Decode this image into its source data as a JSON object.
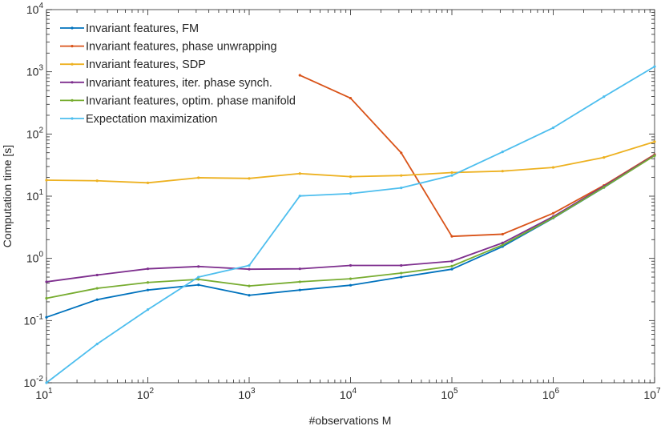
{
  "chart_data": {
    "type": "line",
    "title": "",
    "xlabel": "#observations M",
    "ylabel": "Computation time [s]",
    "xscale": "log",
    "yscale": "log",
    "xlim": [
      10,
      10000000
    ],
    "ylim": [
      0.01,
      10000
    ],
    "grid": false,
    "legend_position": "top-left",
    "x": [
      10,
      31.6,
      100,
      316,
      1000,
      3162,
      10000,
      31623,
      100000,
      316228,
      1000000,
      3162278,
      10000000
    ],
    "x_tick_labels": [
      {
        "base": "10",
        "exp": "1"
      },
      {
        "base": "10",
        "exp": "2"
      },
      {
        "base": "10",
        "exp": "3"
      },
      {
        "base": "10",
        "exp": "4"
      },
      {
        "base": "10",
        "exp": "5"
      },
      {
        "base": "10",
        "exp": "6"
      },
      {
        "base": "10",
        "exp": "7"
      }
    ],
    "y_tick_labels": [
      {
        "base": "10",
        "exp": "-2"
      },
      {
        "base": "10",
        "exp": "-1"
      },
      {
        "base": "10",
        "exp": "0"
      },
      {
        "base": "10",
        "exp": "1"
      },
      {
        "base": "10",
        "exp": "2"
      },
      {
        "base": "10",
        "exp": "3"
      },
      {
        "base": "10",
        "exp": "4"
      }
    ],
    "series": [
      {
        "name": "Invariant features, FM",
        "color": "#0072BD",
        "values": [
          0.113,
          0.217,
          0.31,
          0.375,
          0.255,
          0.31,
          0.37,
          0.5,
          0.67,
          1.55,
          4.45,
          13.8,
          45.4
        ]
      },
      {
        "name": "Invariant features, phase unwrapping",
        "color": "#D95319",
        "values": [
          null,
          null,
          null,
          null,
          null,
          880,
          377,
          49.7,
          2.26,
          2.45,
          5.32,
          14.9,
          46.8
        ]
      },
      {
        "name": "Invariant features, SDP",
        "color": "#EDB120",
        "values": [
          18.1,
          17.7,
          16.4,
          19.8,
          19.3,
          23.1,
          20.6,
          21.5,
          24.0,
          25.3,
          29.0,
          42.0,
          75.0
        ]
      },
      {
        "name": "Invariant features, iter. phase synch.",
        "color": "#7E2F8E",
        "values": [
          0.42,
          0.54,
          0.68,
          0.74,
          0.67,
          0.68,
          0.77,
          0.77,
          0.9,
          1.77,
          4.7,
          14.4,
          45.8
        ]
      },
      {
        "name": "Invariant features, optim. phase manifold",
        "color": "#77AC30",
        "values": [
          0.228,
          0.33,
          0.41,
          0.46,
          0.36,
          0.42,
          0.47,
          0.58,
          0.75,
          1.64,
          4.5,
          13.9,
          44.9
        ]
      },
      {
        "name": "Expectation maximization",
        "color": "#4DBEEE",
        "values": [
          0.01,
          0.042,
          0.15,
          0.5,
          0.77,
          10.1,
          11.0,
          13.6,
          21.5,
          51.6,
          126,
          398,
          1213
        ]
      }
    ]
  }
}
